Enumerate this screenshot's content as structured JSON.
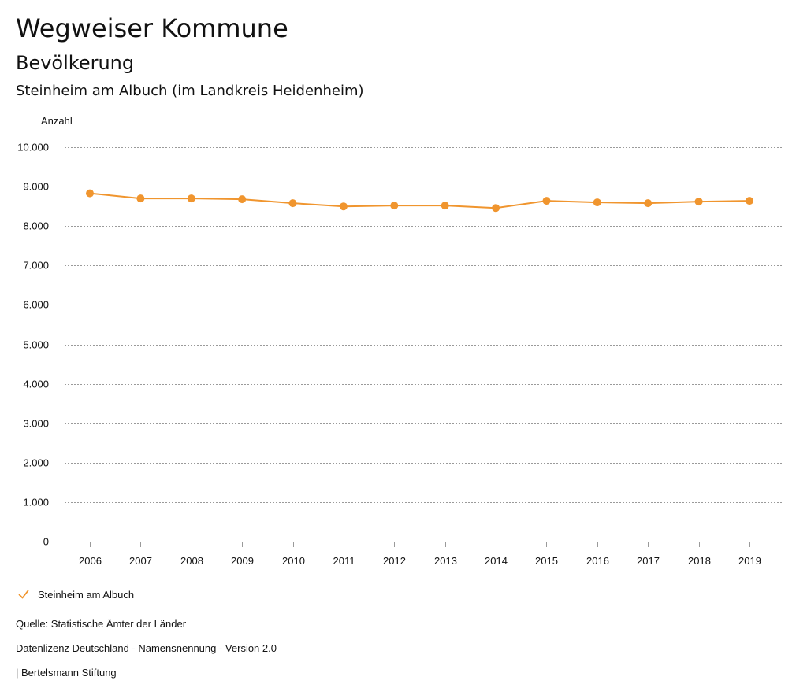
{
  "page": {
    "title": "Wegweiser Kommune",
    "subtitle": "Bevölkerung",
    "region": "Steinheim am Albuch (im Landkreis Heidenheim)"
  },
  "chart_data": {
    "type": "line",
    "title": "Bevölkerung",
    "subtitle": "Steinheim am Albuch (im Landkreis Heidenheim)",
    "ylabel": "Anzahl",
    "xlabel": "",
    "ylim": [
      0,
      10000
    ],
    "y_ticks": [
      0,
      1000,
      2000,
      3000,
      4000,
      5000,
      6000,
      7000,
      8000,
      9000,
      10000
    ],
    "y_tick_labels": [
      "0",
      "1.000",
      "2.000",
      "3.000",
      "4.000",
      "5.000",
      "6.000",
      "7.000",
      "8.000",
      "9.000",
      "10.000"
    ],
    "grid": true,
    "categories": [
      "2006",
      "2007",
      "2008",
      "2009",
      "2010",
      "2011",
      "2012",
      "2013",
      "2014",
      "2015",
      "2016",
      "2017",
      "2018",
      "2019"
    ],
    "series": [
      {
        "name": "Steinheim am Albuch",
        "color": "#f0952e",
        "values": [
          8830,
          8700,
          8700,
          8680,
          8580,
          8500,
          8520,
          8520,
          8460,
          8640,
          8600,
          8580,
          8620,
          8640
        ]
      }
    ]
  },
  "legend": {
    "label": "Steinheim am Albuch",
    "icon": "check-icon"
  },
  "footer": {
    "source": "Quelle: Statistische Ämter der Länder",
    "license": "Datenlizenz Deutschland - Namensnennung - Version 2.0",
    "credit": "| Bertelsmann Stiftung"
  },
  "colors": {
    "series": "#f0952e",
    "grid": "#9a9a9a",
    "text": "#111111"
  }
}
